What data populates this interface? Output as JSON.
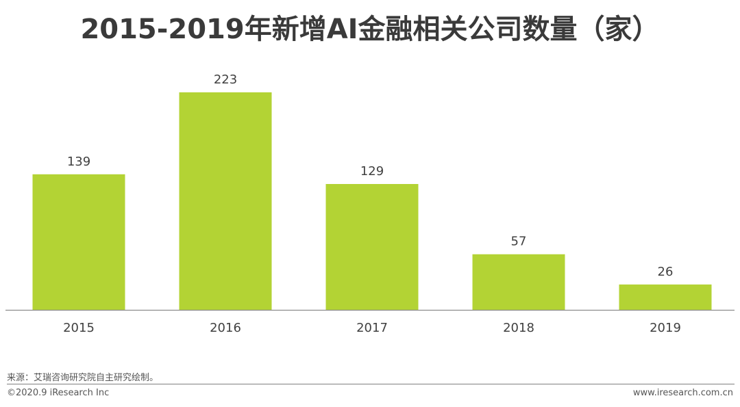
{
  "chart_data": {
    "type": "bar",
    "title": "2015-2019年新增AI金融相关公司数量（家）",
    "categories": [
      "2015",
      "2016",
      "2017",
      "2018",
      "2019"
    ],
    "values": [
      139,
      223,
      129,
      57,
      26
    ],
    "xlabel": "",
    "ylabel": "",
    "ylim": [
      0,
      223
    ],
    "grid": false,
    "legend": "none",
    "bar_color": "#b3d334",
    "axis_color": "#8c8c8c"
  },
  "footer": {
    "source": "来源：艾瑞咨询研究院自主研究绘制。",
    "copyright": "©2020.9 iResearch Inc",
    "website": "www.iresearch.com.cn"
  }
}
